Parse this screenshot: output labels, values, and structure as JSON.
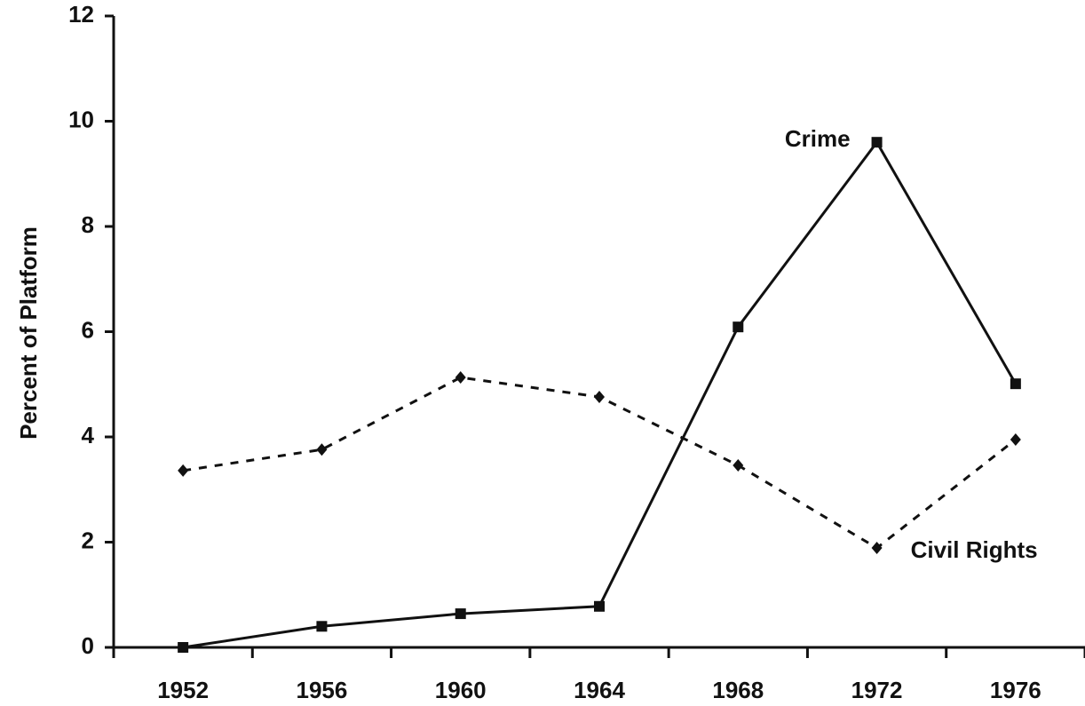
{
  "chart_data": {
    "type": "line",
    "y_label": "Percent of Platform",
    "categories": [
      "1952",
      "1956",
      "1960",
      "1964",
      "1968",
      "1972",
      "1976"
    ],
    "series": [
      {
        "name": "Crime",
        "color": "#111111",
        "dash": false,
        "marker": "square",
        "values": [
          0,
          0.4,
          0.64,
          0.78,
          6.09,
          9.6,
          5.01
        ]
      },
      {
        "name": "Civil Rights",
        "color": "#111111",
        "dash": true,
        "marker": "diamond",
        "values": [
          3.36,
          3.76,
          5.13,
          4.76,
          3.46,
          1.89,
          3.95
        ]
      }
    ],
    "ylim": [
      0,
      12
    ],
    "yticks": [
      0,
      2,
      4,
      6,
      8,
      10,
      12
    ],
    "grid": false
  }
}
